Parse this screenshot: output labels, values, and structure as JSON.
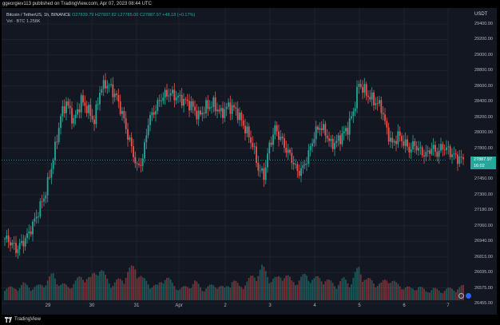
{
  "header": {
    "publish_text": "ggeorgiev113 published on TradingView.com, Apr 07, 2023 08:44 UTC"
  },
  "legend": {
    "symbol": "Bitcoin / TetherUS, 1h, BINANCE",
    "ohlc": "O27839.79  H27937.82  L27785.00  C27887.97  +48.18 (+0.17%)",
    "volume": "Vol · BTC  1.258K"
  },
  "price_axis": {
    "currency": "USDT",
    "ticks": [
      "29400.00",
      "29200.00",
      "29000.00",
      "28800.00",
      "28600.00",
      "28400.00",
      "28200.00",
      "28000.00",
      "27800.00",
      "27600.00",
      "27450.00",
      "27300.00",
      "27180.00",
      "27060.00",
      "26940.00",
      "26815.00",
      "26695.00",
      "26575.00",
      "26455.00"
    ],
    "last_price": "27887.97",
    "countdown": "16:02"
  },
  "time_axis": {
    "labels": [
      "29",
      "30",
      "31",
      "Apr",
      "2",
      "3",
      "4",
      "5",
      "6",
      "7"
    ]
  },
  "footer": {
    "brand": "TradingView"
  },
  "colors": {
    "up": "#26a69a",
    "down": "#ef5350",
    "background": "#131722",
    "grid": "#1e222d"
  },
  "chart_data": {
    "type": "candlestick",
    "symbol": "BTCUSDT",
    "interval": "1h",
    "ylim": [
      26400,
      29450
    ],
    "anchors": [
      [
        0,
        27050
      ],
      [
        3,
        27020
      ],
      [
        6,
        26940
      ],
      [
        9,
        27000
      ],
      [
        12,
        27080
      ],
      [
        15,
        27200
      ],
      [
        18,
        27340
      ],
      [
        22,
        27550
      ],
      [
        26,
        27900
      ],
      [
        30,
        28350
      ],
      [
        33,
        28500
      ],
      [
        37,
        28300
      ],
      [
        41,
        28520
      ],
      [
        44,
        28440
      ],
      [
        48,
        28300
      ],
      [
        51,
        28620
      ],
      [
        54,
        28700
      ],
      [
        57,
        28650
      ],
      [
        60,
        28550
      ],
      [
        63,
        28380
      ],
      [
        66,
        28150
      ],
      [
        69,
        27950
      ],
      [
        71,
        27800
      ],
      [
        74,
        27900
      ],
      [
        77,
        28300
      ],
      [
        80,
        28400
      ],
      [
        84,
        28550
      ],
      [
        88,
        28600
      ],
      [
        92,
        28560
      ],
      [
        96,
        28520
      ],
      [
        100,
        28470
      ],
      [
        104,
        28350
      ],
      [
        108,
        28450
      ],
      [
        112,
        28480
      ],
      [
        116,
        28380
      ],
      [
        120,
        28460
      ],
      [
        124,
        28420
      ],
      [
        127,
        28300
      ],
      [
        130,
        28180
      ],
      [
        133,
        28050
      ],
      [
        136,
        27800
      ],
      [
        139,
        27720
      ],
      [
        142,
        28040
      ],
      [
        145,
        28220
      ],
      [
        148,
        28120
      ],
      [
        151,
        28000
      ],
      [
        154,
        27900
      ],
      [
        157,
        27760
      ],
      [
        160,
        27800
      ],
      [
        163,
        27950
      ],
      [
        166,
        28150
      ],
      [
        169,
        28250
      ],
      [
        172,
        28180
      ],
      [
        175,
        28050
      ],
      [
        178,
        28080
      ],
      [
        181,
        28150
      ],
      [
        184,
        28230
      ],
      [
        187,
        28400
      ],
      [
        190,
        28700
      ],
      [
        193,
        28620
      ],
      [
        196,
        28550
      ],
      [
        199,
        28500
      ],
      [
        202,
        28450
      ],
      [
        205,
        28200
      ],
      [
        208,
        28050
      ],
      [
        211,
        28150
      ],
      [
        214,
        28080
      ],
      [
        217,
        28000
      ],
      [
        220,
        28050
      ],
      [
        223,
        27980
      ],
      [
        226,
        27940
      ],
      [
        229,
        28020
      ],
      [
        232,
        27960
      ],
      [
        235,
        28030
      ],
      [
        238,
        27990
      ],
      [
        241,
        27930
      ],
      [
        244,
        27900
      ],
      [
        246,
        27890
      ]
    ],
    "volume_anchors": [
      [
        0,
        0.3
      ],
      [
        5,
        0.25
      ],
      [
        10,
        0.35
      ],
      [
        14,
        0.28
      ],
      [
        18,
        0.3
      ],
      [
        22,
        0.4
      ],
      [
        26,
        0.55
      ],
      [
        30,
        0.35
      ],
      [
        34,
        0.3
      ],
      [
        38,
        0.4
      ],
      [
        42,
        0.55
      ],
      [
        46,
        0.45
      ],
      [
        50,
        0.75
      ],
      [
        54,
        0.5
      ],
      [
        58,
        0.35
      ],
      [
        62,
        0.45
      ],
      [
        66,
        0.6
      ],
      [
        70,
        0.75
      ],
      [
        74,
        0.45
      ],
      [
        78,
        0.35
      ],
      [
        82,
        0.3
      ],
      [
        86,
        0.55
      ],
      [
        90,
        0.35
      ],
      [
        94,
        0.25
      ],
      [
        98,
        0.3
      ],
      [
        102,
        0.4
      ],
      [
        106,
        0.25
      ],
      [
        110,
        0.3
      ],
      [
        114,
        0.35
      ],
      [
        118,
        0.25
      ],
      [
        122,
        0.45
      ],
      [
        126,
        0.3
      ],
      [
        130,
        0.4
      ],
      [
        134,
        0.55
      ],
      [
        138,
        0.7
      ],
      [
        142,
        0.5
      ],
      [
        146,
        0.45
      ],
      [
        150,
        0.6
      ],
      [
        154,
        0.4
      ],
      [
        158,
        0.45
      ],
      [
        162,
        0.55
      ],
      [
        166,
        0.45
      ],
      [
        170,
        0.5
      ],
      [
        174,
        0.4
      ],
      [
        178,
        0.35
      ],
      [
        182,
        0.45
      ],
      [
        186,
        0.4
      ],
      [
        190,
        0.7
      ],
      [
        194,
        0.45
      ],
      [
        198,
        0.4
      ],
      [
        202,
        0.35
      ],
      [
        206,
        0.5
      ],
      [
        210,
        0.35
      ],
      [
        214,
        0.3
      ],
      [
        218,
        0.25
      ],
      [
        222,
        0.3
      ],
      [
        226,
        0.2
      ],
      [
        230,
        0.25
      ],
      [
        234,
        0.2
      ],
      [
        238,
        0.25
      ],
      [
        242,
        0.25
      ],
      [
        246,
        0.3
      ]
    ]
  }
}
